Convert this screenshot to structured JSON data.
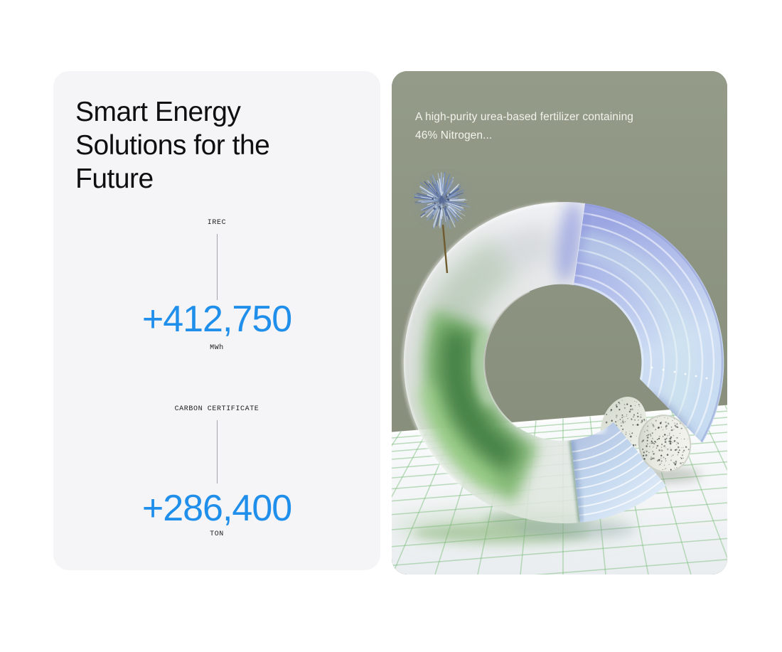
{
  "page": {
    "background": "#ffffff"
  },
  "left_card": {
    "background": "#f5f5f7",
    "title": "Smart Energy Solutions for the Future",
    "value_color": "#1f8feb",
    "stats": [
      {
        "label": "IREC",
        "value": "+412,750",
        "unit": "MWh"
      },
      {
        "label": "CARBON CERTIFICATE",
        "value": "+286,400",
        "unit": "TON"
      }
    ]
  },
  "right_card": {
    "background": "#8a9180",
    "caption": [
      "A high-purity urea-based fertilizer containing",
      "46% Nitrogen..."
    ],
    "illustration_icons": [
      "allium-flower-icon",
      "glass-ring-icon",
      "speckled-stone-icon",
      "tiled-table-icon"
    ]
  }
}
